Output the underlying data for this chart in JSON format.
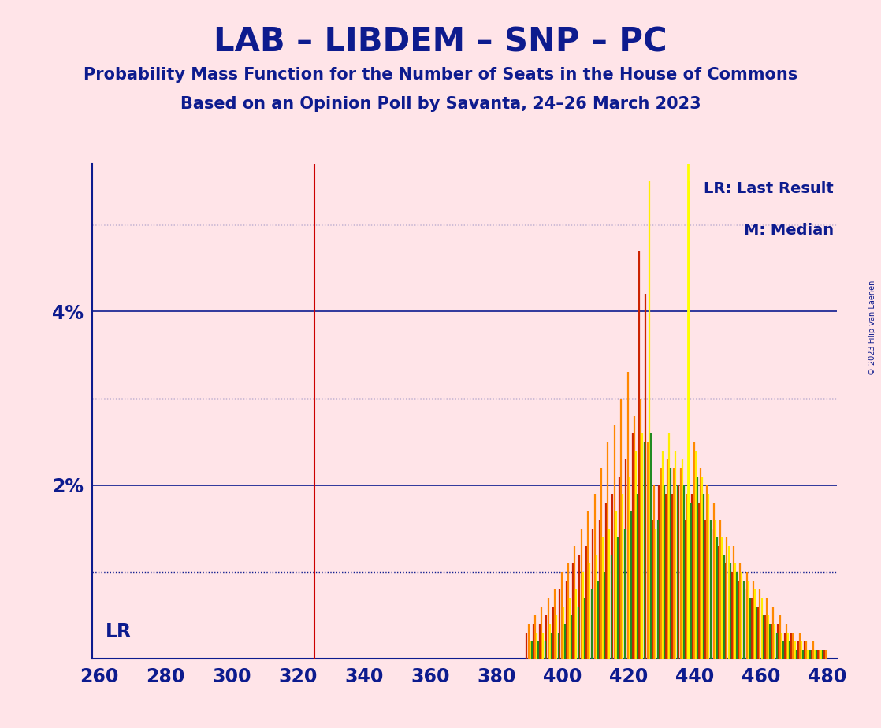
{
  "title": "LAB – LIBDEM – SNP – PC",
  "subtitle1": "Probability Mass Function for the Number of Seats in the House of Commons",
  "subtitle2": "Based on an Opinion Poll by Savanta, 24–26 March 2023",
  "copyright": "© 2023 Filip van Laenen",
  "background_color": "#FFE4E8",
  "text_color": "#0D1B8E",
  "xlim": [
    258,
    483
  ],
  "ylim": [
    0,
    0.057
  ],
  "xlabel_ticks": [
    260,
    280,
    300,
    320,
    340,
    360,
    380,
    400,
    420,
    440,
    460,
    480
  ],
  "solid_gridlines": [
    0.02,
    0.04
  ],
  "dotted_gridlines": [
    0.01,
    0.03,
    0.05
  ],
  "lr_line_x": 325,
  "median_line_x": 438,
  "lr_label": "LR",
  "legend_lr": "LR: Last Result",
  "legend_m": "M: Median",
  "lr_line_color": "#CC0000",
  "median_line_color": "#FFFF00",
  "colors": [
    "#CC2200",
    "#FF8800",
    "#FFEE00",
    "#228B22"
  ],
  "pmf_seats": [
    390,
    392,
    394,
    396,
    398,
    400,
    402,
    404,
    406,
    408,
    410,
    412,
    414,
    416,
    418,
    420,
    422,
    424,
    426,
    428,
    430,
    432,
    434,
    436,
    438,
    440,
    442,
    444,
    446,
    448,
    450,
    452,
    454,
    456,
    458,
    460,
    462,
    464,
    466,
    468,
    470,
    472,
    474,
    476,
    478,
    480
  ],
  "pmf_red": [
    0.003,
    0.004,
    0.004,
    0.005,
    0.006,
    0.008,
    0.009,
    0.011,
    0.012,
    0.013,
    0.015,
    0.016,
    0.018,
    0.019,
    0.021,
    0.023,
    0.026,
    0.047,
    0.042,
    0.016,
    0.02,
    0.019,
    0.019,
    0.02,
    0.016,
    0.019,
    0.018,
    0.016,
    0.015,
    0.013,
    0.011,
    0.01,
    0.009,
    0.008,
    0.007,
    0.006,
    0.005,
    0.004,
    0.004,
    0.003,
    0.003,
    0.002,
    0.002,
    0.001,
    0.001,
    0.001
  ],
  "pmf_orange": [
    0.004,
    0.005,
    0.006,
    0.007,
    0.008,
    0.01,
    0.011,
    0.013,
    0.015,
    0.017,
    0.019,
    0.022,
    0.025,
    0.027,
    0.03,
    0.033,
    0.028,
    0.03,
    0.025,
    0.02,
    0.022,
    0.023,
    0.022,
    0.022,
    0.019,
    0.025,
    0.022,
    0.02,
    0.018,
    0.016,
    0.014,
    0.013,
    0.011,
    0.01,
    0.009,
    0.008,
    0.007,
    0.006,
    0.005,
    0.004,
    0.003,
    0.003,
    0.002,
    0.002,
    0.001,
    0.001
  ],
  "pmf_yellow": [
    0.002,
    0.003,
    0.003,
    0.004,
    0.005,
    0.006,
    0.007,
    0.008,
    0.01,
    0.011,
    0.012,
    0.014,
    0.015,
    0.017,
    0.019,
    0.021,
    0.024,
    0.026,
    0.055,
    0.015,
    0.024,
    0.026,
    0.024,
    0.023,
    0.055,
    0.024,
    0.021,
    0.019,
    0.016,
    0.014,
    0.013,
    0.011,
    0.01,
    0.009,
    0.008,
    0.007,
    0.005,
    0.004,
    0.003,
    0.003,
    0.002,
    0.002,
    0.001,
    0.001,
    0.001,
    0.0
  ],
  "pmf_green": [
    0.002,
    0.002,
    0.002,
    0.003,
    0.003,
    0.004,
    0.005,
    0.006,
    0.007,
    0.008,
    0.009,
    0.01,
    0.012,
    0.014,
    0.015,
    0.017,
    0.019,
    0.025,
    0.026,
    0.016,
    0.02,
    0.022,
    0.02,
    0.02,
    0.018,
    0.021,
    0.019,
    0.016,
    0.014,
    0.012,
    0.011,
    0.01,
    0.009,
    0.007,
    0.006,
    0.005,
    0.004,
    0.003,
    0.002,
    0.002,
    0.001,
    0.001,
    0.001,
    0.001,
    0.001,
    0.0
  ]
}
